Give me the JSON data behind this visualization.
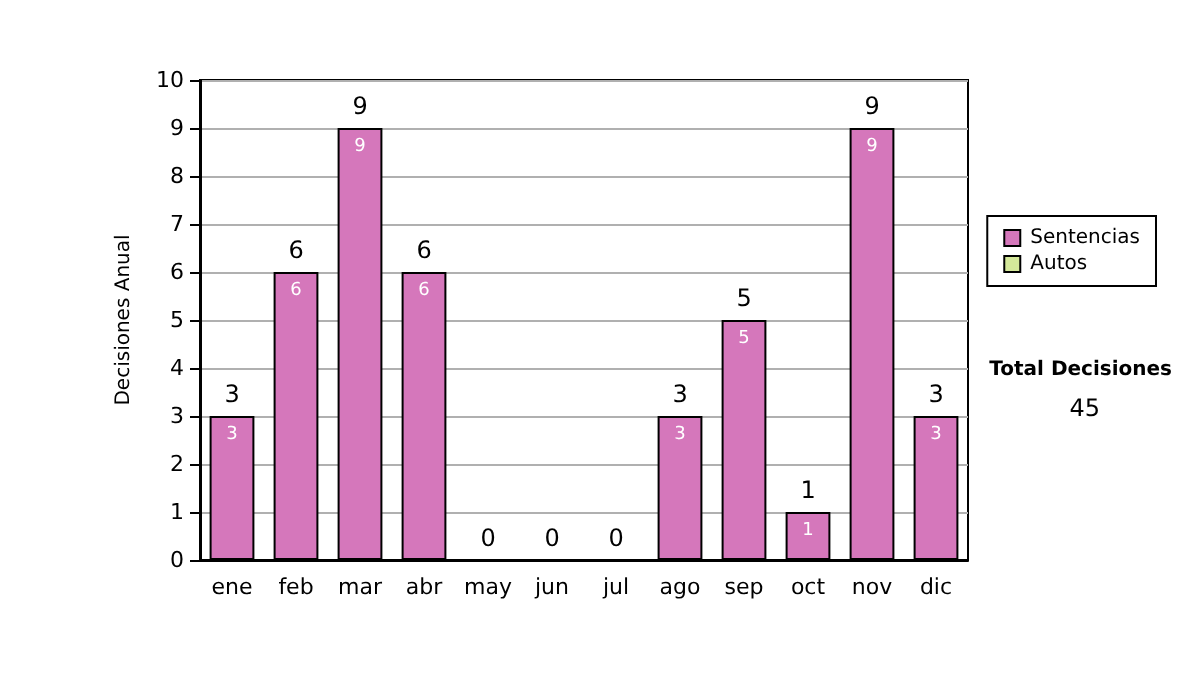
{
  "chart_data": {
    "type": "bar",
    "stacked": true,
    "ylabel": "Decisiones Anual",
    "categories": [
      "ene",
      "feb",
      "mar",
      "abr",
      "may",
      "jun",
      "jul",
      "ago",
      "sep",
      "oct",
      "nov",
      "dic"
    ],
    "series": [
      {
        "name": "Sentencias",
        "color": "#d577bb",
        "values": [
          3,
          6,
          9,
          6,
          0,
          0,
          0,
          3,
          5,
          1,
          9,
          3
        ],
        "value_labels": [
          "3",
          "6",
          "9",
          "6",
          null,
          null,
          null,
          "3",
          "5",
          "1",
          "9",
          "3"
        ]
      },
      {
        "name": "Autos",
        "color": "#d4e89a",
        "values": [
          0,
          0,
          0,
          0,
          0,
          0,
          0,
          0,
          0,
          0,
          0,
          0
        ]
      }
    ],
    "totals": [
      "3",
      "6",
      "9",
      "6",
      "0",
      "0",
      "0",
      "3",
      "5",
      "1",
      "9",
      "3"
    ],
    "ylim": [
      0,
      10
    ],
    "yticks": [
      0,
      1,
      2,
      3,
      4,
      5,
      6,
      7,
      8,
      9,
      10
    ],
    "grid": "y",
    "legend": "right",
    "annotations": [
      "Total Decisiones",
      "45"
    ]
  }
}
